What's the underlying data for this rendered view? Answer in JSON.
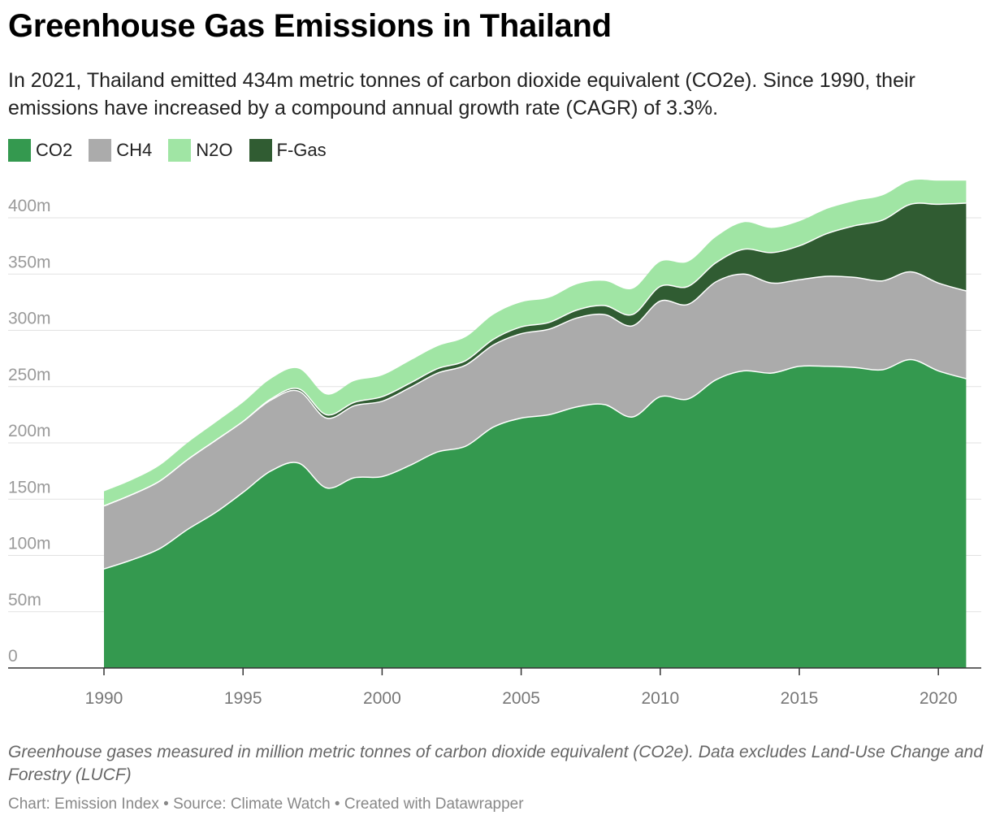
{
  "title": "Greenhouse Gas Emissions in Thailand",
  "subtitle": "In 2021, Thailand emitted 434m metric tonnes of carbon dioxide equivalent (CO2e). Since 1990, their emissions have increased by a compound annual growth rate (CAGR) of 3.3%.",
  "footnote": "Greenhouse gases measured in million metric tonnes of carbon dioxide equivalent (CO2e). Data excludes Land-Use Change and Forestry (LUCF)",
  "credit": "Chart: Emission Index • Source: Climate Watch • Created with Datawrapper",
  "colors": {
    "CO2": "#34994f",
    "CH4": "#ababab",
    "N2O": "#a0e5a4",
    "F-Gas": "#305c32"
  },
  "chart_data": {
    "type": "area",
    "stacked": true,
    "title": "Greenhouse Gas Emissions in Thailand",
    "xlabel": "",
    "ylabel": "",
    "ylim": [
      0,
      430
    ],
    "xlim": [
      1987,
      2022
    ],
    "grid": true,
    "legend_position": "top-left",
    "y_ticks": [
      0,
      50,
      100,
      150,
      200,
      250,
      300,
      350,
      400
    ],
    "y_tick_labels": [
      "0",
      "50m",
      "100m",
      "150m",
      "200m",
      "250m",
      "300m",
      "350m",
      "400m"
    ],
    "x_ticks": [
      1990,
      1995,
      2000,
      2005,
      2010,
      2015,
      2020
    ],
    "x_tick_labels": [
      "1990",
      "1995",
      "2000",
      "2005",
      "2010",
      "2015",
      "2020"
    ],
    "x": [
      1990,
      1991,
      1992,
      1993,
      1994,
      1995,
      1996,
      1997,
      1998,
      1999,
      2000,
      2001,
      2002,
      2003,
      2004,
      2005,
      2006,
      2007,
      2008,
      2009,
      2010,
      2011,
      2012,
      2013,
      2014,
      2015,
      2016,
      2017,
      2018,
      2019,
      2020,
      2021
    ],
    "series": [
      {
        "name": "CO2",
        "values": [
          88,
          96,
          106,
          123,
          138,
          156,
          175,
          182,
          160,
          169,
          170,
          180,
          192,
          197,
          214,
          222,
          225,
          232,
          234,
          223,
          241,
          239,
          256,
          264,
          262,
          268,
          268,
          267,
          265,
          274,
          264,
          257
        ]
      },
      {
        "name": "CH4",
        "values": [
          56,
          58,
          60,
          62,
          64,
          63,
          63,
          64,
          62,
          64,
          67,
          69,
          70,
          72,
          73,
          75,
          76,
          79,
          80,
          81,
          85,
          84,
          87,
          86,
          80,
          77,
          80,
          80,
          79,
          78,
          78,
          78
        ]
      },
      {
        "name": "F-Gas",
        "values": [
          0,
          0,
          0,
          0,
          0,
          0,
          1,
          2,
          3,
          3,
          4,
          4,
          4,
          4,
          5,
          6,
          6,
          7,
          8,
          10,
          13,
          16,
          17,
          22,
          27,
          30,
          38,
          46,
          54,
          60,
          70,
          78
        ]
      },
      {
        "name": "N2O",
        "values": [
          13,
          13,
          14,
          15,
          16,
          17,
          18,
          18,
          18,
          19,
          19,
          20,
          20,
          21,
          22,
          22,
          22,
          23,
          22,
          23,
          22,
          22,
          23,
          24,
          22,
          22,
          22,
          22,
          22,
          21,
          21,
          20
        ]
      }
    ]
  }
}
